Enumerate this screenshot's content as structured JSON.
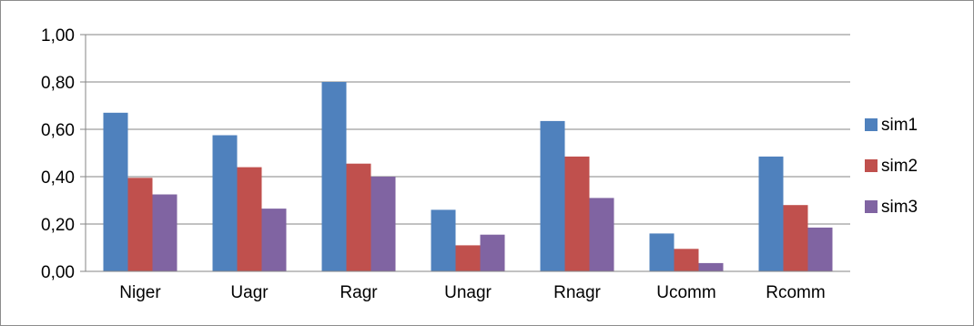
{
  "chart_data": {
    "type": "bar",
    "title": "",
    "xlabel": "",
    "ylabel": "",
    "categories": [
      "Niger",
      "Uagr",
      "Ragr",
      "Unagr",
      "Rnagr",
      "Ucomm",
      "Rcomm"
    ],
    "series": [
      {
        "name": "sim1",
        "color": "#4f81bd",
        "values": [
          0.67,
          0.575,
          0.8,
          0.26,
          0.635,
          0.16,
          0.485
        ]
      },
      {
        "name": "sim2",
        "color": "#c0504d",
        "values": [
          0.395,
          0.44,
          0.455,
          0.11,
          0.485,
          0.095,
          0.28
        ]
      },
      {
        "name": "sim3",
        "color": "#8064a2",
        "values": [
          0.325,
          0.265,
          0.4,
          0.155,
          0.31,
          0.035,
          0.185
        ]
      }
    ],
    "ylim": [
      0,
      1
    ],
    "yticks": [
      "0,00",
      "0,20",
      "0,40",
      "0,60",
      "0,80",
      "1,00"
    ],
    "grid": true,
    "legend": "right"
  }
}
